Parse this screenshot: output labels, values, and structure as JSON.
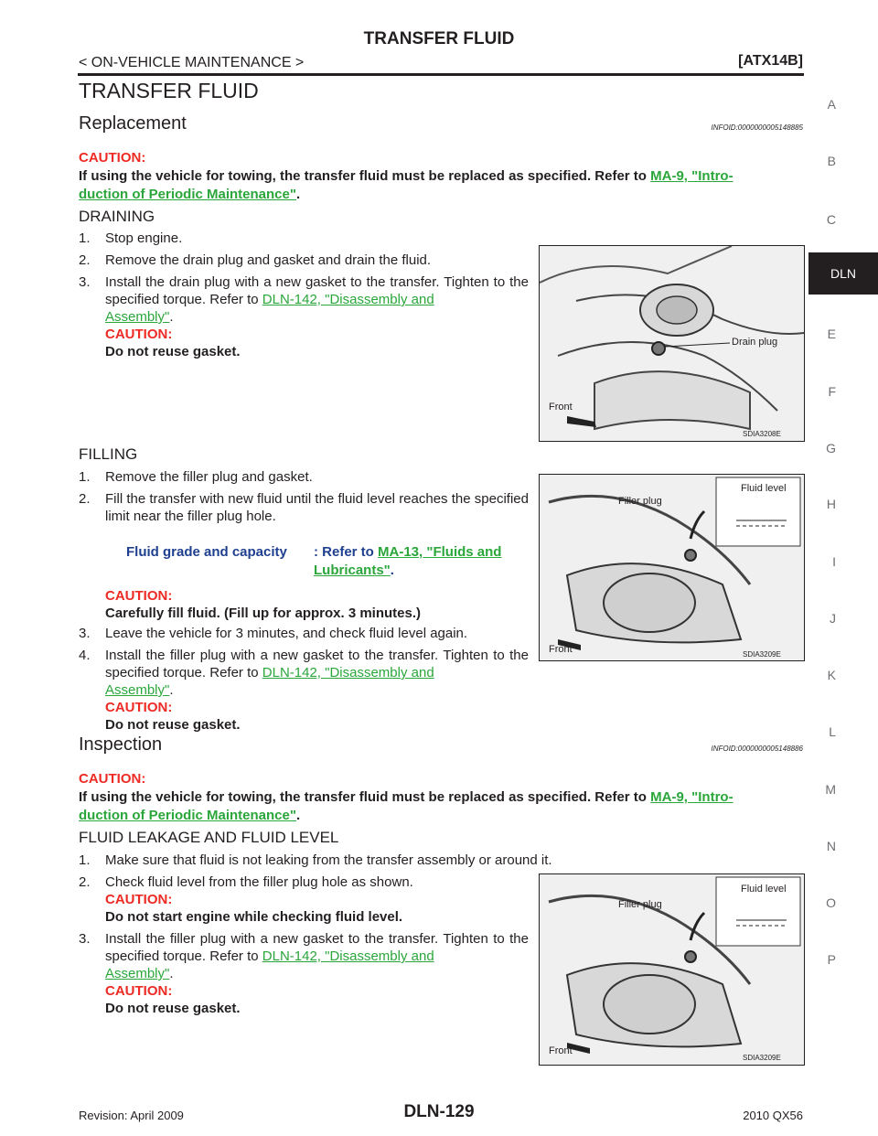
{
  "header": {
    "title": "TRANSFER FLUID",
    "breadcrumb": "< ON-VEHICLE MAINTENANCE >",
    "model_code": "[ATX14B]"
  },
  "side_tabs": {
    "letters": [
      "A",
      "B",
      "C",
      "DLN",
      "E",
      "F",
      "G",
      "H",
      "I",
      "J",
      "K",
      "L",
      "M",
      "N",
      "O",
      "P"
    ],
    "active": "DLN"
  },
  "section_title": "TRANSFER FLUID",
  "replacement": {
    "title": "Replacement",
    "infoid": "INFOID:0000000005148885",
    "caution_label": "CAUTION:",
    "caution_text": "If using the vehicle for towing, the transfer fluid must be replaced as specified. Refer to",
    "caution_link_part1": "MA-9, \"Intro-",
    "caution_link_part2": "duction of Periodic Maintenance\"",
    "caution_end": ".",
    "draining": {
      "title": "DRAINING",
      "steps": [
        {
          "num": "1.",
          "text": "Stop engine."
        },
        {
          "num": "2.",
          "text": "Remove the drain plug and gasket and drain the fluid."
        },
        {
          "num": "3.",
          "text": "Install the drain plug with a new gasket to the transfer. Tighten to the specified torque. Refer to",
          "link_a": "DLN-142, \"Disassembly and",
          "link_b": "Assembly\"",
          "end": ".",
          "caution_label": "CAUTION:",
          "caution": "Do not reuse gasket."
        }
      ],
      "figure": {
        "label": "Drain plug",
        "front": "Front",
        "code": "SDIA3208E"
      }
    },
    "filling": {
      "title": "FILLING",
      "steps": [
        {
          "num": "1.",
          "text": "Remove the filler plug and gasket."
        },
        {
          "num": "2.",
          "text": "Fill the transfer with new fluid until the fluid level reaches the specified limit near the filler plug hole."
        },
        {
          "num": "3.",
          "text": "Leave the vehicle for 3 minutes, and check fluid level again."
        },
        {
          "num": "4.",
          "text": "Install the filler plug with a new gasket to the transfer. Tighten to the specified torque. Refer to",
          "link_a": "DLN-142, \"Disassembly and",
          "link_b": "Assembly\"",
          "end": ".",
          "caution_label": "CAUTION:",
          "caution": "Do not reuse gasket."
        }
      ],
      "spec_label": "Fluid grade and capacity",
      "spec_value_prefix": ": Refer to",
      "spec_link_a": "MA-13, \"Fluids and",
      "spec_link_b": "Lubricants\"",
      "spec_end": ".",
      "caution_label": "CAUTION:",
      "caution": "Carefully fill fluid. (Fill up for approx. 3 minutes.)",
      "figure": {
        "filler": "Filler plug",
        "level": "Fluid level",
        "front": "Front",
        "code": "SDIA3209E"
      }
    }
  },
  "inspection": {
    "title": "Inspection",
    "infoid": "INFOID:0000000005148886",
    "caution_label": "CAUTION:",
    "caution_text": "If using the vehicle for towing, the transfer fluid must be replaced as specified. Refer to",
    "caution_link_part1": "MA-9, \"Intro-",
    "caution_link_part2": "duction of Periodic Maintenance\"",
    "caution_end": ".",
    "leakage": {
      "title": "FLUID LEAKAGE AND FLUID LEVEL",
      "steps": [
        {
          "num": "1.",
          "text": "Make sure that fluid is not leaking from the transfer assembly or around it."
        },
        {
          "num": "2.",
          "text": "Check fluid level from the filler plug hole as shown.",
          "caution_label": "CAUTION:",
          "caution": "Do not start engine while checking fluid level."
        },
        {
          "num": "3.",
          "text": "Install the filler plug with a new gasket to the transfer. Tighten to the specified torque. Refer to",
          "link_a": "DLN-142, \"Disassembly and",
          "link_b": "Assembly\"",
          "end": ".",
          "caution_label": "CAUTION:",
          "caution": "Do not reuse gasket."
        }
      ],
      "figure": {
        "filler": "Filler plug",
        "level": "Fluid level",
        "front": "Front",
        "code": "SDIA3209E"
      }
    }
  },
  "footer": {
    "revision": "Revision: April 2009",
    "page": "DLN-129",
    "model": "2010 QX56"
  }
}
